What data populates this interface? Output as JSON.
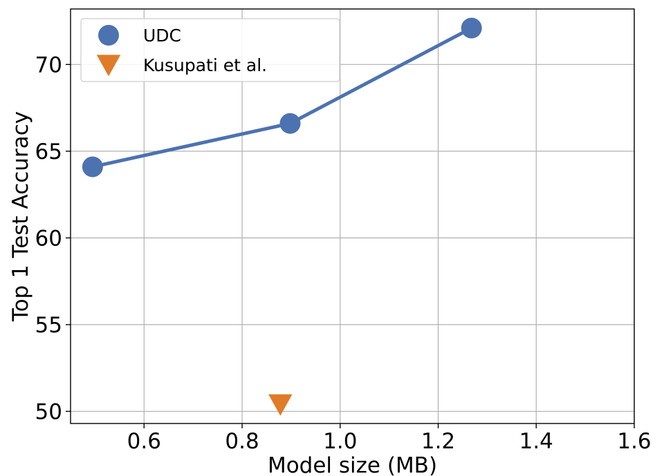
{
  "chart_data": {
    "type": "line",
    "title": "",
    "xlabel": "Model size (MB)",
    "ylabel": "Top 1 Test Accuracy",
    "xlim": [
      0.45,
      1.6
    ],
    "ylim": [
      49.3,
      73.2
    ],
    "xticks": [
      0.6,
      0.8,
      1.0,
      1.2,
      1.4,
      1.6
    ],
    "xtick_labels": [
      "0.6",
      "0.8",
      "1.0",
      "1.2",
      "1.4",
      "1.6"
    ],
    "yticks": [
      50,
      55,
      60,
      65,
      70
    ],
    "ytick_labels": [
      "50",
      "55",
      "60",
      "65",
      "70"
    ],
    "grid": true,
    "legend_position": "top-left",
    "series": [
      {
        "name": "UDC",
        "marker": "circle",
        "line": true,
        "color": "#4c72b0",
        "x": [
          0.495,
          0.898,
          1.268
        ],
        "y": [
          64.1,
          66.6,
          72.1
        ]
      },
      {
        "name": "Kusupati et al.",
        "marker": "triangle-down",
        "line": false,
        "color": "#e07b28",
        "x": [
          0.878
        ],
        "y": [
          50.4
        ]
      }
    ]
  }
}
